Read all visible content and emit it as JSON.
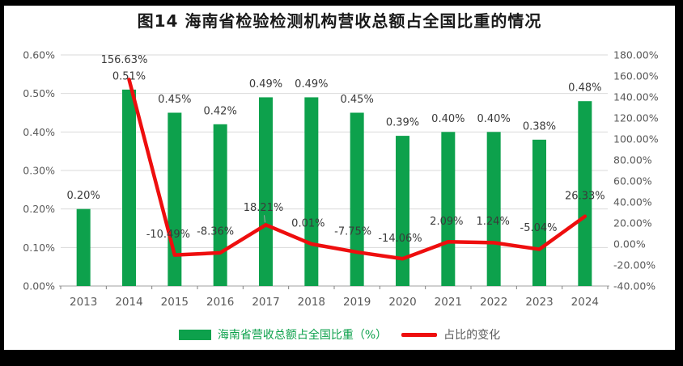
{
  "title": "图14 海南省检验检测机构营收总额占全国比重的情况",
  "colors": {
    "bar": "#0da14c",
    "line": "#ee0e0e",
    "gridline": "#d9d9d9",
    "axis_line": "#d0d0d0",
    "tick_mark": "#7f7f7f",
    "axis_text": "#595959",
    "label_text": "#3a3a3a",
    "background": "#ffffff",
    "frame": "#000000"
  },
  "legend": {
    "bar_label": "海南省营收总额占全国比重（%）",
    "line_label": "占比的变化"
  },
  "chart_data": {
    "type": "bar+line combo",
    "title": "图14 海南省检验检测机构营收总额占全国比重的情况",
    "categories": [
      "2013",
      "2014",
      "2015",
      "2016",
      "2017",
      "2018",
      "2019",
      "2020",
      "2021",
      "2022",
      "2023",
      "2024"
    ],
    "series": [
      {
        "name": "海南省营收总额占全国比重（%）",
        "type": "bar",
        "axis": "left",
        "values": [
          0.2,
          0.51,
          0.45,
          0.42,
          0.49,
          0.49,
          0.45,
          0.39,
          0.4,
          0.4,
          0.38,
          0.48
        ],
        "labels": [
          "0.20%",
          "0.51%",
          "0.45%",
          "0.42%",
          "0.49%",
          "0.49%",
          "0.45%",
          "0.39%",
          "0.40%",
          "0.40%",
          "0.38%",
          "0.48%"
        ]
      },
      {
        "name": "占比的变化",
        "type": "line",
        "axis": "right",
        "values": [
          null,
          156.63,
          -10.49,
          -8.36,
          18.21,
          0.01,
          -7.75,
          -14.06,
          2.09,
          1.24,
          -5.04,
          26.33
        ],
        "labels": [
          null,
          "156.63%",
          "-10.49%",
          "-8.36%",
          "18.21%",
          "0.01%",
          "-7.75%",
          "-14.06%",
          "2.09%",
          "1.24%",
          "-5.04%",
          "26.33%"
        ]
      }
    ],
    "left_axis": {
      "min": 0.0,
      "max": 0.6,
      "ticks": [
        "0.60%",
        "0.50%",
        "0.40%",
        "0.30%",
        "0.20%",
        "0.10%",
        "0.00%"
      ]
    },
    "right_axis": {
      "min": -40,
      "max": 180,
      "ticks": [
        "180.00%",
        "160.00%",
        "140.00%",
        "120.00%",
        "100.00%",
        "80.00%",
        "60.00%",
        "40.00%",
        "20.00%",
        "0.00%",
        "-20.00%",
        "-40.00%"
      ]
    },
    "grid": "horizontal",
    "legend_position": "bottom"
  }
}
